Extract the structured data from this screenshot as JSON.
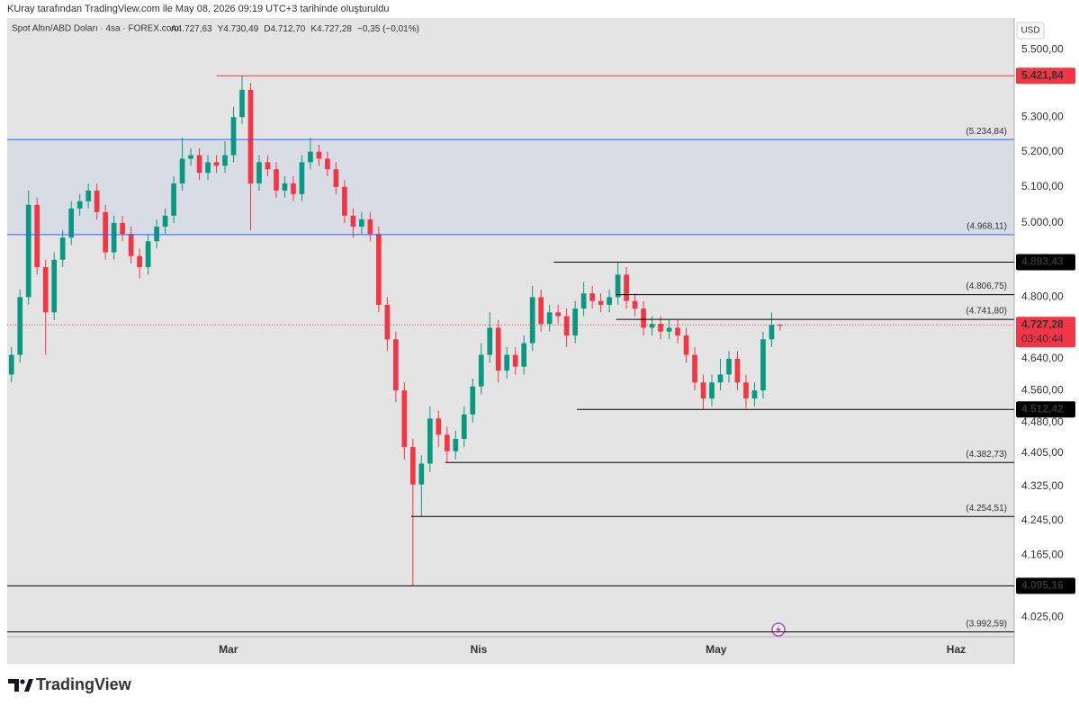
{
  "header": {
    "credit": "KUray tarafından TradingView.com ile May 08, 2026 09:19 UTC+3 tarihinde oluşturuldu"
  },
  "brand": "TradingView",
  "chart_data": {
    "type": "candlestick",
    "symbol": "Spot Altın/ABD Doları · 4sa · FOREX.com",
    "ohlc_legend": [
      "A4.727,63",
      "Y4.730,49",
      "D4.712,70",
      "K4.727,28",
      "−0,35 (−0,01%)"
    ],
    "currency": "USD",
    "open": [
      4600,
      4650,
      4800,
      5050,
      4880,
      4760,
      4900,
      4960,
      5040,
      5060,
      5090,
      5030,
      4920,
      5000,
      4970,
      4910,
      4880,
      4950,
      4990,
      5020,
      5110,
      5180,
      5190,
      5140,
      5170,
      5160,
      5190,
      5300,
      5380,
      5110,
      5170,
      5150,
      5090,
      5110,
      5080,
      5170,
      5200,
      5180,
      5150,
      5100,
      5020,
      4990,
      5010,
      4970,
      4780,
      4690,
      4560,
      4420,
      4330,
      4380,
      4490,
      4450,
      4410,
      4440,
      4500,
      4570,
      4650,
      4720,
      4610,
      4650,
      4620,
      4680,
      4800,
      4730,
      4760,
      4750,
      4700,
      4770,
      4810,
      4790,
      4780,
      4800,
      4860,
      4790,
      4770,
      4720,
      4730,
      4710,
      4720,
      4700,
      4650,
      4580,
      4540,
      4580,
      4600,
      4640,
      4580,
      4540,
      4560,
      4690,
      4727.63
    ],
    "high": [
      4670,
      4820,
      5090,
      5070,
      4900,
      4920,
      4980,
      5060,
      5080,
      5110,
      5110,
      5050,
      5020,
      5020,
      4990,
      4930,
      4970,
      5010,
      5040,
      5130,
      5240,
      5210,
      5210,
      5190,
      5190,
      5230,
      5330,
      5421.84,
      5400,
      5190,
      5190,
      5170,
      5130,
      5130,
      5190,
      5240,
      5220,
      5200,
      5170,
      5120,
      5040,
      5030,
      5030,
      4990,
      4800,
      4710,
      4580,
      4440,
      4400,
      4520,
      4510,
      4470,
      4460,
      4520,
      4590,
      4680,
      4760,
      4740,
      4670,
      4670,
      4700,
      4830,
      4820,
      4780,
      4780,
      4770,
      4790,
      4840,
      4830,
      4810,
      4820,
      4893.43,
      4880,
      4810,
      4790,
      4750,
      4750,
      4740,
      4740,
      4720,
      4670,
      4600,
      4600,
      4640,
      4660,
      4660,
      4600,
      4580,
      4710,
      4760,
      4730.49
    ],
    "low": [
      4580,
      4630,
      4780,
      4860,
      4650,
      4740,
      4880,
      4940,
      5020,
      5040,
      5010,
      4900,
      4900,
      4950,
      4890,
      4850,
      4860,
      4930,
      4970,
      5000,
      5090,
      5160,
      5120,
      5120,
      5140,
      5140,
      5170,
      5280,
      4980,
      5090,
      5130,
      5070,
      5070,
      5060,
      5060,
      5150,
      5160,
      5130,
      5080,
      5000,
      4960,
      4970,
      4950,
      4760,
      4660,
      4530,
      4390,
      4095.16,
      4254.51,
      4360,
      4420,
      4382.73,
      4390,
      4420,
      4480,
      4550,
      4630,
      4580,
      4590,
      4600,
      4600,
      4660,
      4710,
      4710,
      4730,
      4670,
      4680,
      4750,
      4770,
      4760,
      4760,
      4780,
      4770,
      4750,
      4700,
      4700,
      4690,
      4690,
      4680,
      4630,
      4560,
      4512.42,
      4520,
      4560,
      4580,
      4560,
      4515,
      4520,
      4540,
      4670,
      4712.7
    ],
    "close": [
      4650,
      4800,
      5050,
      4880,
      4760,
      4900,
      4960,
      5040,
      5060,
      5090,
      5030,
      4920,
      5000,
      4970,
      4910,
      4880,
      4950,
      4990,
      5020,
      5110,
      5180,
      5190,
      5140,
      5170,
      5160,
      5190,
      5300,
      5380,
      5110,
      5170,
      5150,
      5090,
      5110,
      5080,
      5170,
      5200,
      5180,
      5150,
      5100,
      5020,
      4990,
      5010,
      4970,
      4780,
      4690,
      4560,
      4420,
      4330,
      4380,
      4490,
      4450,
      4410,
      4440,
      4500,
      4570,
      4650,
      4720,
      4610,
      4650,
      4620,
      4680,
      4800,
      4730,
      4760,
      4750,
      4700,
      4770,
      4810,
      4790,
      4780,
      4800,
      4860,
      4790,
      4770,
      4720,
      4730,
      4710,
      4720,
      4700,
      4650,
      4580,
      4540,
      4580,
      4600,
      4640,
      4580,
      4540,
      4560,
      4690,
      4727.63,
      4727.28
    ],
    "up_color": "#089981",
    "down_color": "#f23645",
    "xlim": [
      -0.5,
      117.4
    ],
    "xticks": [
      {
        "value": 25.4,
        "label": "Mar"
      },
      {
        "value": 54.7,
        "label": "Nis"
      },
      {
        "value": 82.5,
        "label": "May"
      },
      {
        "value": 110.6,
        "label": "Haz"
      }
    ],
    "ylim": [
      3982,
      5597
    ],
    "yscale": "log",
    "yticks": [
      {
        "value": 5500,
        "label": "5.500,00"
      },
      {
        "value": 5300,
        "label": "5.300,00"
      },
      {
        "value": 5200,
        "label": "5.200,00"
      },
      {
        "value": 5100,
        "label": "5.100,00"
      },
      {
        "value": 5000,
        "label": "5.000,00"
      },
      {
        "value": 4800,
        "label": "4.800,00"
      },
      {
        "value": 4640,
        "label": "4.640,00"
      },
      {
        "value": 4560,
        "label": "4.560,00"
      },
      {
        "value": 4480,
        "label": "4.480,00"
      },
      {
        "value": 4405,
        "label": "4.405,00"
      },
      {
        "value": 4325,
        "label": "4.325,00"
      },
      {
        "value": 4245,
        "label": "4.245,00"
      },
      {
        "value": 4165,
        "label": "4.165,00"
      },
      {
        "value": 4025,
        "label": "4.025,00"
      }
    ],
    "grid": false,
    "levels": [
      {
        "value": 5421.84,
        "label": "5.421,84",
        "style": "box",
        "color": "#f23645",
        "from": 24
      },
      {
        "value": 5234.84,
        "label": "(5.234,84)",
        "style": "text",
        "color": "#2962ff",
        "fill_to_next": true
      },
      {
        "value": 4968.11,
        "label": "(4.968,11)",
        "style": "text",
        "color": "#2962ff"
      },
      {
        "value": 4893.43,
        "label": "4.893,43",
        "style": "box",
        "color": "#000000",
        "from": 63.5
      },
      {
        "value": 4806.75,
        "label": "(4.806,75)",
        "style": "text",
        "color": "#000000",
        "from": 70.8
      },
      {
        "value": 4741.8,
        "label": "(4.741,80)",
        "style": "text",
        "color": "#000000",
        "from": 70.8
      },
      {
        "value": 4512.42,
        "label": "4.512,42",
        "style": "box",
        "color": "#000000",
        "from": 66.2
      },
      {
        "value": 4382.73,
        "label": "(4.382,73)",
        "style": "text",
        "color": "#000000",
        "from": 50.8
      },
      {
        "value": 4254.51,
        "label": "(4.254,51)",
        "style": "text",
        "color": "#000000",
        "from": 46.8
      },
      {
        "value": 4095.16,
        "label": "4.095,16",
        "style": "box",
        "color": "#000000"
      },
      {
        "value": 3992.59,
        "label": "(3.992,59)",
        "style": "text",
        "color": "#000000"
      }
    ],
    "last": {
      "value": 4727.28,
      "label": "4.727,28",
      "countdown": "03:40:44",
      "color": "#f23645"
    }
  }
}
